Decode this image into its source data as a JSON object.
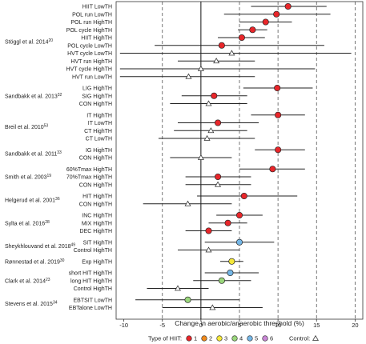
{
  "chart_data": {
    "type": "forest",
    "xlabel": "Change in aerobic/anaerobic threshold (%)",
    "xlim": [
      -11,
      21
    ],
    "xticks": [
      -10,
      -5,
      0,
      5,
      10,
      15,
      20
    ],
    "xtick_labels": [
      "-10",
      "-5",
      "0",
      "5",
      "10",
      "15",
      "20"
    ],
    "grid": {
      "dashed_vertical_at": [
        -5,
        5,
        10,
        15,
        20
      ],
      "solid_vertical_at": [
        0
      ]
    },
    "groups": [
      {
        "study": "Stöggl et al. 2014",
        "ref": "20",
        "rows": [
          {
            "condition": "HIIT LowTH",
            "mean": 11.3,
            "lo": 6.5,
            "hi": 16.3,
            "type": 1
          },
          {
            "condition": "POL run LowTH",
            "mean": 9.8,
            "lo": 3.0,
            "hi": 16.8,
            "type": 1
          },
          {
            "condition": "POL run HighTH",
            "mean": 8.4,
            "lo": 5.0,
            "hi": 11.8,
            "type": 1
          },
          {
            "condition": "POL cycle HighTH",
            "mean": 6.7,
            "lo": 4.8,
            "hi": 8.6,
            "type": 1
          },
          {
            "condition": "HIIT HighTH",
            "mean": 5.3,
            "lo": 2.2,
            "hi": 8.3,
            "type": 1
          },
          {
            "condition": "POL cycle LowTH",
            "mean": 2.7,
            "lo": -6.0,
            "hi": 16.0,
            "type": 1
          },
          {
            "condition": "HVT cycle LowTH",
            "mean": 4.0,
            "lo": -10.5,
            "hi": 19.5,
            "type": null
          },
          {
            "condition": "HVT run HighTH",
            "mean": 2.0,
            "lo": -3.0,
            "hi": 7.0,
            "type": null
          },
          {
            "condition": "HVT cycle HighTH",
            "mean": 0.0,
            "lo": -10.5,
            "hi": 14.8,
            "type": null
          },
          {
            "condition": "HVT run LowTH",
            "mean": -1.6,
            "lo": -10.5,
            "hi": 7.0,
            "type": null
          }
        ]
      },
      {
        "study": "Sandbakk et al. 2013",
        "ref": "32",
        "rows": [
          {
            "condition": "LIG HighTH",
            "mean": 9.9,
            "lo": 5.5,
            "hi": 14.5,
            "type": 1
          },
          {
            "condition": "SIG HighTH",
            "mean": 1.7,
            "lo": -2.5,
            "hi": 6.0,
            "type": 1
          },
          {
            "condition": "CON HighTH",
            "mean": 1.0,
            "lo": -4.0,
            "hi": 6.0,
            "type": null
          }
        ]
      },
      {
        "study": "Breil et al. 2010",
        "ref": "53",
        "rows": [
          {
            "condition": "IT HighTH",
            "mean": 10.0,
            "lo": 6.5,
            "hi": 13.5,
            "type": 1
          },
          {
            "condition": "IT LowTH",
            "mean": 2.2,
            "lo": -3.0,
            "hi": 7.5,
            "type": 1
          },
          {
            "condition": "CT HighTH",
            "mean": 1.3,
            "lo": -3.5,
            "hi": 6.0,
            "type": null
          },
          {
            "condition": "CT LowTH",
            "mean": 0.8,
            "lo": -5.5,
            "hi": 7.0,
            "type": null
          }
        ]
      },
      {
        "study": "Sandbakk et al. 2011",
        "ref": "33",
        "rows": [
          {
            "condition": "IG HighTH",
            "mean": 10.0,
            "lo": 7.0,
            "hi": 13.5,
            "type": 1
          },
          {
            "condition": "CON HighTH",
            "mean": 0.0,
            "lo": -4.0,
            "hi": 4.0,
            "type": null
          }
        ]
      },
      {
        "study": "Smith et al. 2003",
        "ref": "19",
        "rows": [
          {
            "condition": "60%Tmax HighTH",
            "mean": 9.3,
            "lo": 5.0,
            "hi": 13.5,
            "type": 1
          },
          {
            "condition": "70%Tmax HighTH",
            "mean": 2.2,
            "lo": -2.0,
            "hi": 6.5,
            "type": 1
          },
          {
            "condition": "CON HighTH",
            "mean": 2.2,
            "lo": -2.0,
            "hi": 6.5,
            "type": null
          }
        ]
      },
      {
        "study": "Helgerud et al. 2001",
        "ref": "36",
        "rows": [
          {
            "condition": "HIT HighTH",
            "mean": 5.6,
            "lo": -0.5,
            "hi": 12.5,
            "type": 1
          },
          {
            "condition": "CON HighTH",
            "mean": -1.7,
            "lo": -7.5,
            "hi": 4.0,
            "type": null
          }
        ]
      },
      {
        "study": "Sylta et al. 2016",
        "ref": "28",
        "rows": [
          {
            "condition": "INC HighTH",
            "mean": 5.0,
            "lo": 2.0,
            "hi": 8.0,
            "type": 1
          },
          {
            "condition": "MIX HighTH",
            "mean": 3.5,
            "lo": 1.0,
            "hi": 6.0,
            "type": 1
          },
          {
            "condition": "DEC HighTH",
            "mean": 1.0,
            "lo": -2.0,
            "hi": 4.0,
            "type": 1
          }
        ]
      },
      {
        "study": "Sheykhlouvand et al. 2018",
        "ref": "49",
        "rows": [
          {
            "condition": "SIT HighTH",
            "mean": 5.0,
            "lo": 0.5,
            "hi": 9.5,
            "type": 5
          },
          {
            "condition": "Control HighTH",
            "mean": 1.0,
            "lo": -3.0,
            "hi": 5.0,
            "type": null
          }
        ]
      },
      {
        "study": "Rønnestad et al. 2019",
        "ref": "30",
        "rows": [
          {
            "condition": "Exp HighTH",
            "mean": 4.0,
            "lo": 2.5,
            "hi": 5.5,
            "type": 3
          }
        ]
      },
      {
        "study": "Clark et al. 2014",
        "ref": "23",
        "rows": [
          {
            "condition": "short HIT HighTH",
            "mean": 3.8,
            "lo": 0.5,
            "hi": 7.5,
            "type": 5
          },
          {
            "condition": "long HIT HighTH",
            "mean": 2.7,
            "lo": -1.0,
            "hi": 6.5,
            "type": 4
          },
          {
            "condition": "Control HighTH",
            "mean": -3.0,
            "lo": -7.0,
            "hi": 1.0,
            "type": null
          }
        ]
      },
      {
        "study": "Stevens et al. 2015",
        "ref": "34",
        "rows": [
          {
            "condition": "EBTSIT LowTH",
            "mean": -1.7,
            "lo": -8.5,
            "hi": 5.0,
            "type": 4
          },
          {
            "condition": "EBTalone LowTH",
            "mean": 1.5,
            "lo": -5.0,
            "hi": 8.0,
            "type": null
          }
        ]
      }
    ],
    "legend": {
      "title": "Type of HIIT:",
      "items": [
        {
          "label": "1",
          "color": "#e8262a"
        },
        {
          "label": "2",
          "color": "#f08a1c"
        },
        {
          "label": "3",
          "color": "#f5e83a"
        },
        {
          "label": "4",
          "color": "#9ad67c"
        },
        {
          "label": "5",
          "color": "#74b6e6"
        },
        {
          "label": "6",
          "color": "#c987d6"
        }
      ],
      "control_label": "Control:"
    },
    "colors": {
      "control_marker": "#ffffff",
      "line": "#222222",
      "grid": "#555555"
    }
  }
}
